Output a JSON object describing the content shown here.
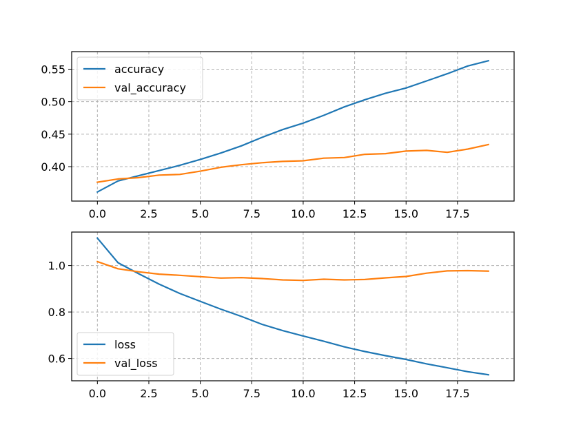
{
  "chart_data": [
    {
      "type": "line",
      "x": [
        0,
        1,
        2,
        3,
        4,
        5,
        6,
        7,
        8,
        9,
        10,
        11,
        12,
        13,
        14,
        15,
        16,
        17,
        18,
        19
      ],
      "series": [
        {
          "name": "accuracy",
          "color": "#1f77b4",
          "values": [
            0.361,
            0.378,
            0.386,
            0.394,
            0.402,
            0.411,
            0.421,
            0.432,
            0.445,
            0.457,
            0.467,
            0.479,
            0.492,
            0.503,
            0.513,
            0.521,
            0.532,
            0.543,
            0.555,
            0.563
          ]
        },
        {
          "name": "val_accuracy",
          "color": "#ff7f0e",
          "values": [
            0.376,
            0.381,
            0.383,
            0.387,
            0.388,
            0.393,
            0.399,
            0.403,
            0.406,
            0.408,
            0.409,
            0.413,
            0.414,
            0.419,
            0.42,
            0.424,
            0.425,
            0.422,
            0.427,
            0.434
          ]
        }
      ],
      "xlim": [
        -1.25,
        20.25
      ],
      "ylim": [
        0.347,
        0.577
      ],
      "xticks": [
        0,
        2.5,
        5,
        7.5,
        10,
        12.5,
        15,
        17.5
      ],
      "xtick_labels": [
        "0.0",
        "2.5",
        "5.0",
        "7.5",
        "10.0",
        "12.5",
        "15.0",
        "17.5"
      ],
      "yticks": [
        0.4,
        0.45,
        0.5,
        0.55
      ],
      "ytick_labels": [
        "0.40",
        "0.45",
        "0.50",
        "0.55"
      ],
      "grid": true,
      "legend_position": "top-left"
    },
    {
      "type": "line",
      "x": [
        0,
        1,
        2,
        3,
        4,
        5,
        6,
        7,
        8,
        9,
        10,
        11,
        12,
        13,
        14,
        15,
        16,
        17,
        18,
        19
      ],
      "series": [
        {
          "name": "loss",
          "color": "#1f77b4",
          "values": [
            1.118,
            1.012,
            0.965,
            0.92,
            0.88,
            0.846,
            0.812,
            0.781,
            0.747,
            0.72,
            0.697,
            0.674,
            0.65,
            0.63,
            0.612,
            0.596,
            0.577,
            0.56,
            0.543,
            0.53
          ]
        },
        {
          "name": "val_loss",
          "color": "#ff7f0e",
          "values": [
            1.017,
            0.986,
            0.973,
            0.963,
            0.958,
            0.952,
            0.946,
            0.948,
            0.944,
            0.938,
            0.936,
            0.941,
            0.938,
            0.94,
            0.947,
            0.953,
            0.967,
            0.977,
            0.978,
            0.976
          ]
        }
      ],
      "xlim": [
        -1.25,
        20.25
      ],
      "ylim": [
        0.504,
        1.144
      ],
      "xticks": [
        0,
        2.5,
        5,
        7.5,
        10,
        12.5,
        15,
        17.5
      ],
      "xtick_labels": [
        "0.0",
        "2.5",
        "5.0",
        "7.5",
        "10.0",
        "12.5",
        "15.0",
        "17.5"
      ],
      "yticks": [
        0.6,
        0.8,
        1.0
      ],
      "ytick_labels": [
        "0.6",
        "0.8",
        "1.0"
      ],
      "grid": true,
      "legend_position": "bottom-left"
    }
  ]
}
